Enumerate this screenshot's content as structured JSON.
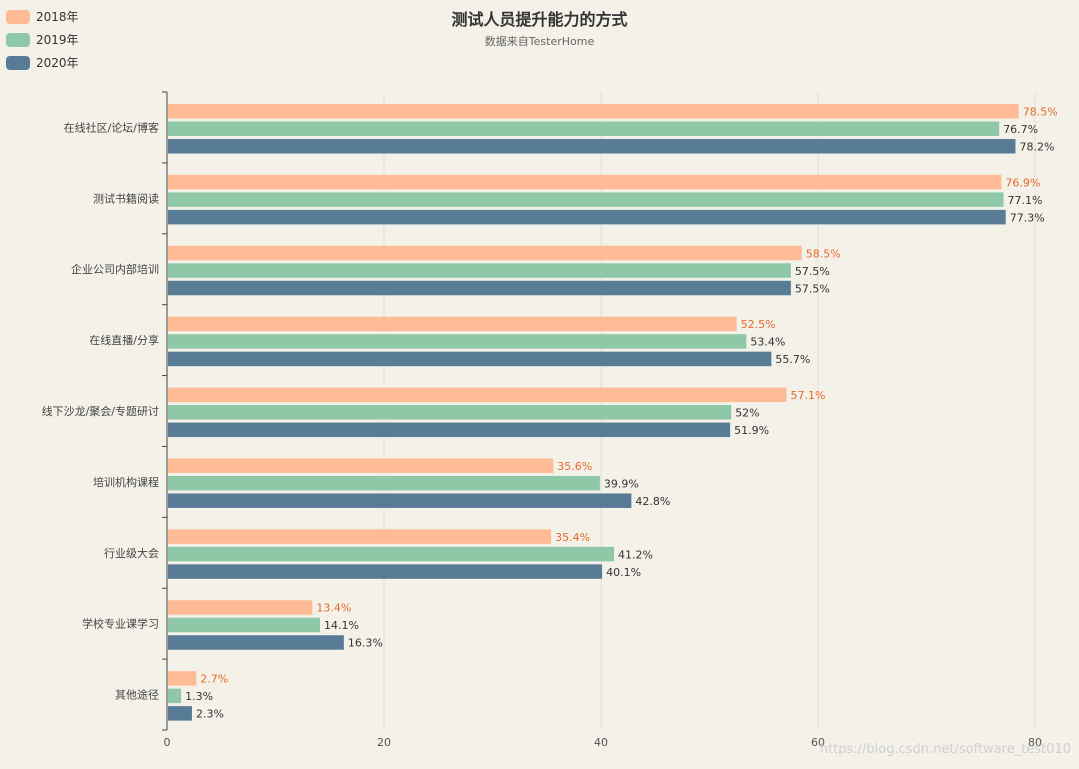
{
  "chart_data": {
    "type": "bar",
    "orientation": "horizontal",
    "title": "测试人员提升能力的方式",
    "subtitle": "数据来自TesterHome",
    "categories": [
      "在线社区/论坛/博客",
      "测试书籍阅读",
      "企业公司内部培训",
      "在线直播/分享",
      "线下沙龙/聚会/专题研讨",
      "培训机构课程",
      "行业级大会",
      "学校专业课学习",
      "其他途径"
    ],
    "series": [
      {
        "name": "2018年",
        "color": "#ffbb95",
        "label_color": "#e8692e",
        "values": [
          78.5,
          76.9,
          58.5,
          52.5,
          57.1,
          35.6,
          35.4,
          13.4,
          2.7
        ],
        "labels": [
          "78.5%",
          "76.9%",
          "58.5%",
          "52.5%",
          "57.1%",
          "35.6%",
          "35.4%",
          "13.4%",
          "2.7%"
        ]
      },
      {
        "name": "2019年",
        "color": "#8fc8a6",
        "label_color": "#333333",
        "values": [
          76.7,
          77.1,
          57.5,
          53.4,
          52,
          39.9,
          41.2,
          14.1,
          1.3
        ],
        "labels": [
          "76.7%",
          "77.1%",
          "57.5%",
          "53.4%",
          "52%",
          "39.9%",
          "41.2%",
          "14.1%",
          "1.3%"
        ]
      },
      {
        "name": "2020年",
        "color": "#587c96",
        "label_color": "#333333",
        "values": [
          78.2,
          77.3,
          57.5,
          55.7,
          51.9,
          42.8,
          40.1,
          16.3,
          2.3
        ],
        "labels": [
          "78.2%",
          "77.3%",
          "57.5%",
          "55.7%",
          "51.9%",
          "42.8%",
          "40.1%",
          "16.3%",
          "2.3%"
        ]
      }
    ],
    "xlim": [
      0,
      80
    ],
    "x_ticks": [
      "0",
      "20",
      "40",
      "60",
      "80"
    ],
    "grid": true,
    "legend_position": "top-left"
  },
  "watermark": "https://blog.csdn.net/software_test010"
}
